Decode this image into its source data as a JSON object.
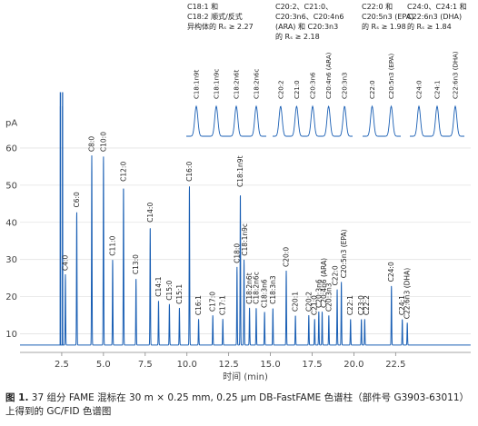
{
  "chart_data": {
    "type": "line",
    "ylabel": "pA",
    "xlabel": "时间 (min)",
    "xlim": [
      0,
      27
    ],
    "ylim": [
      5,
      70
    ],
    "xticks": [
      2.5,
      5.0,
      7.5,
      10.0,
      12.5,
      15.0,
      17.5,
      20.0,
      22.5
    ],
    "yticks": [
      10,
      20,
      30,
      40,
      50,
      60
    ],
    "baseline": 7,
    "trace_color": "#1a5fb4",
    "solvent_peaks": [
      2.42,
      2.55
    ],
    "peaks": [
      {
        "rt": 2.72,
        "height": 26,
        "label": "C4:0"
      },
      {
        "rt": 3.4,
        "height": 43,
        "label": "C6:0"
      },
      {
        "rt": 4.3,
        "height": 58,
        "label": "C8:0"
      },
      {
        "rt": 5.0,
        "height": 58,
        "label": "C10:0"
      },
      {
        "rt": 5.55,
        "height": 30,
        "label": "C11:0"
      },
      {
        "rt": 6.2,
        "height": 50,
        "label": "C12:0"
      },
      {
        "rt": 6.95,
        "height": 25,
        "label": "C13:0"
      },
      {
        "rt": 7.8,
        "height": 39,
        "label": "C14:0"
      },
      {
        "rt": 8.3,
        "height": 19,
        "label": "C14:1"
      },
      {
        "rt": 8.95,
        "height": 18,
        "label": "C15:0"
      },
      {
        "rt": 9.55,
        "height": 17,
        "label": "C15:1"
      },
      {
        "rt": 10.15,
        "height": 50,
        "label": "C16:0"
      },
      {
        "rt": 10.7,
        "height": 14,
        "label": "C16:1"
      },
      {
        "rt": 11.55,
        "height": 15,
        "label": "C17:0"
      },
      {
        "rt": 12.15,
        "height": 14,
        "label": "C17:1"
      },
      {
        "rt": 13.0,
        "height": 28,
        "label": "C18:0"
      },
      {
        "rt": 13.2,
        "height": 48,
        "label": "C18:1n9t"
      },
      {
        "rt": 13.42,
        "height": 30,
        "label": "C18:1n9c"
      },
      {
        "rt": 13.75,
        "height": 17,
        "label": "C18:2n6t"
      },
      {
        "rt": 14.15,
        "height": 17,
        "label": "C18:2n6c"
      },
      {
        "rt": 14.65,
        "height": 16,
        "label": "C18:3n6"
      },
      {
        "rt": 15.15,
        "height": 17,
        "label": "C18:3n3"
      },
      {
        "rt": 15.95,
        "height": 27,
        "label": "C20:0"
      },
      {
        "rt": 16.5,
        "height": 15,
        "label": "C20:1"
      },
      {
        "rt": 17.3,
        "height": 15,
        "label": "C20:2"
      },
      {
        "rt": 17.65,
        "height": 14,
        "label": "C21:0"
      },
      {
        "rt": 17.9,
        "height": 16,
        "label": "C20:3n6"
      },
      {
        "rt": 18.1,
        "height": 16,
        "label": "C20:4n6 (ARA)"
      },
      {
        "rt": 18.5,
        "height": 15,
        "label": "C20:3n3"
      },
      {
        "rt": 19.0,
        "height": 22,
        "label": "C22:0"
      },
      {
        "rt": 19.25,
        "height": 24,
        "label": "C20:5n3 (EPA)"
      },
      {
        "rt": 19.8,
        "height": 14,
        "label": "C22:1"
      },
      {
        "rt": 20.45,
        "height": 14,
        "label": "C23:0"
      },
      {
        "rt": 20.65,
        "height": 14,
        "label": "C22:2"
      },
      {
        "rt": 22.25,
        "height": 23,
        "label": "C24:0"
      },
      {
        "rt": 22.9,
        "height": 14,
        "label": "C24:1"
      },
      {
        "rt": 23.2,
        "height": 13,
        "label": "C22:6n3 (DHA)"
      }
    ],
    "insets": [
      {
        "annotation": [
          "C18:1 和",
          "C18:2 顺式/反式",
          "异构体的 Rₛ ≥ 2.27"
        ],
        "peaks": [
          "C18:1n9t",
          "C18:1n9c",
          "C18:2n6t",
          "C18:2n6c"
        ]
      },
      {
        "annotation": [
          "C20:2、C21:0、",
          "C20:3n6、C20:4n6",
          "(ARA) 和 C20:3n3",
          "的 Rₛ ≥ 2.18"
        ],
        "peaks": [
          "C20:2",
          "C21:0",
          "C20:3n6",
          "C20:4n6 (ARA)",
          "C20:3n3"
        ]
      },
      {
        "annotation": [
          "C22:0 和",
          "C20:5n3 (EPA)",
          "的 Rₛ ≥ 1.98"
        ],
        "peaks": [
          "C22:0",
          "C20:5n3 (EPA)"
        ]
      },
      {
        "annotation": [
          "C24:0、C24:1 和",
          "C22:6n3 (DHA)",
          "的 Rₛ ≥ 1.84"
        ],
        "peaks": [
          "C24:0",
          "C24:1",
          "C22:6n3 (DHA)"
        ]
      }
    ]
  },
  "caption": {
    "bold": "图 1.",
    "text": " 37 组分 FAME 混标在 30 m × 0.25 mm, 0.25 µm DB-FastFAME 色谱柱（部件号 G3903-63011）上得到的 GC/FID 色谱图"
  }
}
